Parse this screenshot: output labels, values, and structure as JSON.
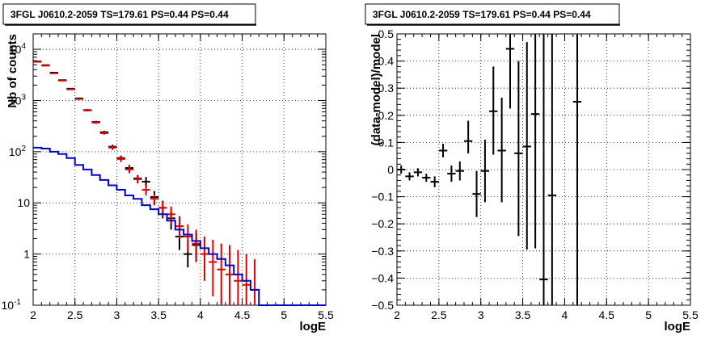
{
  "chart_data": [
    {
      "type": "line",
      "title": "3FGL J0610.2-2059 TS=179.61 PS=0.44 PS=0.44",
      "xlabel": "logE",
      "ylabel": "Nb of counts",
      "xlim": [
        2,
        5.5
      ],
      "ylim": [
        0.1,
        20000
      ],
      "yscale": "log",
      "grid": true,
      "x_ticks": [
        {
          "value": 2,
          "label": "2"
        },
        {
          "value": 2.5,
          "label": "2.5"
        },
        {
          "value": 3,
          "label": "3"
        },
        {
          "value": 3.5,
          "label": "3.5"
        },
        {
          "value": 4,
          "label": "4"
        },
        {
          "value": 4.5,
          "label": "4.5"
        },
        {
          "value": 5,
          "label": "5"
        },
        {
          "value": 5.5,
          "label": "5.5"
        }
      ],
      "y_ticks": [
        {
          "value": 0.1,
          "label": "10",
          "sup": "-1"
        },
        {
          "value": 1,
          "label": "1",
          "sup": ""
        },
        {
          "value": 10,
          "label": "10",
          "sup": ""
        },
        {
          "value": 100,
          "label": "10",
          "sup": "2"
        },
        {
          "value": 1000,
          "label": "10",
          "sup": "3"
        },
        {
          "value": 10000,
          "label": "10",
          "sup": "4"
        }
      ],
      "series": [
        {
          "color": "#000000",
          "style": "errorbar",
          "x": [
            2.05,
            2.15,
            2.25,
            2.35,
            2.45,
            2.55,
            2.65,
            2.75,
            2.85,
            2.95,
            3.05,
            3.15,
            3.25,
            3.35,
            3.45,
            3.55,
            3.65,
            3.75,
            3.85,
            3.95
          ],
          "y": [
            5800,
            4900,
            3500,
            2500,
            1700,
            1100,
            650,
            380,
            240,
            125,
            75,
            48,
            30,
            26,
            13,
            8,
            5,
            2.2,
            1.0,
            1.5
          ],
          "ylow": [
            5700,
            4800,
            3400,
            2450,
            1650,
            1060,
            620,
            360,
            225,
            113,
            66,
            41,
            25,
            20,
            9,
            5,
            3,
            1.2,
            0.55,
            0.7
          ],
          "yhigh": [
            5900,
            5000,
            3600,
            2550,
            1750,
            1140,
            680,
            400,
            255,
            137,
            84,
            55,
            35,
            32,
            17,
            11,
            7,
            3.5,
            1.8,
            2.6
          ]
        },
        {
          "color": "#dd0000",
          "style": "errorbar",
          "x": [
            2.05,
            2.15,
            2.25,
            2.35,
            2.45,
            2.55,
            2.65,
            2.75,
            2.85,
            2.95,
            3.05,
            3.15,
            3.25,
            3.35,
            3.45,
            3.55,
            3.65,
            3.75,
            3.85,
            3.95,
            4.05,
            4.15,
            4.25,
            4.35,
            4.45,
            4.55,
            4.65
          ],
          "y": [
            5700,
            4800,
            3400,
            2450,
            1650,
            1070,
            640,
            370,
            230,
            120,
            72,
            45,
            29,
            18,
            12,
            8,
            6,
            3.5,
            2.2,
            1.6,
            1.0,
            0.7,
            0.5,
            0.4,
            0.3,
            0.25,
            0.2
          ],
          "ylow": [
            5600,
            4700,
            3300,
            2400,
            1600,
            1030,
            610,
            350,
            215,
            108,
            63,
            38,
            24,
            14,
            9,
            5.5,
            3.8,
            2.0,
            1.1,
            0.7,
            0.3,
            0.15,
            0.1,
            0.1,
            0.1,
            0.1,
            0.1
          ],
          "yhigh": [
            5800,
            4900,
            3500,
            2500,
            1700,
            1110,
            670,
            390,
            245,
            132,
            81,
            52,
            34,
            22,
            15,
            10.5,
            8.5,
            5.5,
            3.8,
            3.0,
            2.2,
            1.9,
            1.6,
            1.5,
            1.2,
            1.0,
            0.8
          ]
        },
        {
          "color": "#0000cc",
          "style": "step",
          "edges": [
            2.0,
            2.1,
            2.2,
            2.3,
            2.4,
            2.5,
            2.6,
            2.7,
            2.8,
            2.9,
            3.0,
            3.1,
            3.2,
            3.3,
            3.4,
            3.5,
            3.6,
            3.7,
            3.8,
            3.9,
            4.0,
            4.1,
            4.2,
            4.3,
            4.4,
            4.5,
            4.6,
            4.7,
            4.8,
            4.9,
            5.0,
            5.1,
            5.2,
            5.3,
            5.4,
            5.5
          ],
          "values": [
            120,
            115,
            100,
            90,
            75,
            55,
            45,
            35,
            28,
            22,
            18,
            14,
            12,
            9,
            7.5,
            6,
            4.5,
            3.0,
            2.4,
            1.8,
            1.3,
            1.0,
            0.8,
            0.6,
            0.4,
            0.3,
            0.2,
            0.1,
            0.1,
            0.1,
            0.1,
            0.1,
            0.1,
            0.1,
            0.1
          ]
        }
      ]
    },
    {
      "type": "scatter",
      "title": "3FGL J0610.2-2059 TS=179.61 PS=0.44 PS=0.44",
      "xlabel": "logE",
      "ylabel": "(data-model)/model",
      "xlim": [
        2,
        5.5
      ],
      "ylim": [
        -0.5,
        0.5
      ],
      "grid": true,
      "x_ticks": [
        {
          "value": 2,
          "label": "2"
        },
        {
          "value": 2.5,
          "label": "2.5"
        },
        {
          "value": 3,
          "label": "3"
        },
        {
          "value": 3.5,
          "label": "3.5"
        },
        {
          "value": 4,
          "label": "4"
        },
        {
          "value": 4.5,
          "label": "4.5"
        },
        {
          "value": 5,
          "label": "5"
        },
        {
          "value": 5.5,
          "label": "5.5"
        }
      ],
      "y_ticks": [
        {
          "value": -0.5,
          "label": "−0.5"
        },
        {
          "value": -0.4,
          "label": "−0.4"
        },
        {
          "value": -0.3,
          "label": "−0.3"
        },
        {
          "value": -0.2,
          "label": "−0.2"
        },
        {
          "value": -0.1,
          "label": "−0.1"
        },
        {
          "value": 0,
          "label": "0"
        },
        {
          "value": 0.1,
          "label": "0.1"
        },
        {
          "value": 0.2,
          "label": "0.2"
        },
        {
          "value": 0.3,
          "label": "0.3"
        },
        {
          "value": 0.4,
          "label": "0.4"
        },
        {
          "value": 0.5,
          "label": "0.5"
        }
      ],
      "series": [
        {
          "color": "#000000",
          "style": "errorbar",
          "x": [
            2.05,
            2.15,
            2.25,
            2.35,
            2.45,
            2.55,
            2.65,
            2.75,
            2.85,
            2.95,
            3.05,
            3.15,
            3.25,
            3.35,
            3.45,
            3.55,
            3.65,
            3.75,
            3.85,
            4.15
          ],
          "y": [
            0.0,
            -0.025,
            -0.01,
            -0.03,
            -0.045,
            0.07,
            -0.015,
            -0.005,
            0.105,
            -0.09,
            -0.005,
            0.215,
            0.07,
            0.445,
            0.06,
            0.085,
            0.205,
            -0.405,
            -0.095,
            0.25
          ],
          "ylow": [
            -0.015,
            -0.04,
            -0.025,
            -0.045,
            -0.065,
            0.045,
            -0.045,
            -0.04,
            0.06,
            -0.175,
            -0.12,
            0.055,
            -0.12,
            0.225,
            -0.245,
            -0.295,
            -0.29,
            -0.5,
            -0.5,
            -0.5
          ],
          "yhigh": [
            0.015,
            -0.01,
            0.005,
            -0.015,
            -0.025,
            0.095,
            0.015,
            0.03,
            0.18,
            -0.005,
            0.11,
            0.38,
            0.265,
            0.5,
            0.4,
            0.47,
            0.5,
            0.5,
            0.5,
            0.5
          ]
        }
      ]
    }
  ]
}
